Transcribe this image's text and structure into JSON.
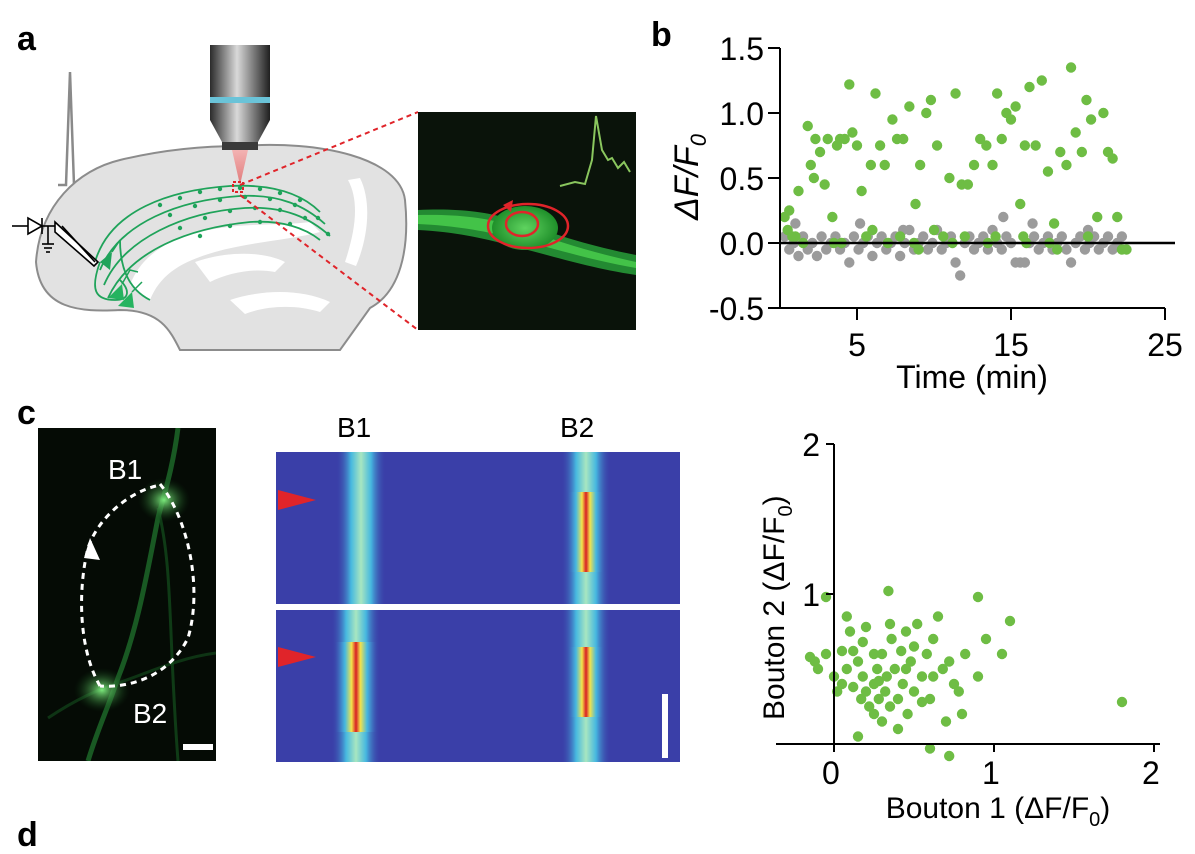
{
  "panels": {
    "a": {
      "letter": "a"
    },
    "b": {
      "letter": "b"
    },
    "c": {
      "letter": "c"
    },
    "d": {
      "letter": "d"
    }
  },
  "panel_c_image_labels": {
    "b1": "B1",
    "b2": "B2"
  },
  "panel_c_kymograph_labels": {
    "b1": "B1",
    "b2": "B2"
  },
  "colors": {
    "green": "#6ebd44",
    "gray": "#9b9b9b",
    "red": "#e0242a",
    "kymo_bg": "#3a3fa8",
    "dendrite": "#1fa35a"
  },
  "chart_data": [
    {
      "type": "scatter",
      "panel": "b",
      "xlabel": "Time (min)",
      "ylabel_main": "ΔF/F",
      "ylabel_sub": "0",
      "xlim": [
        0,
        25
      ],
      "ylim": [
        -0.5,
        1.5
      ],
      "xticks": [
        5,
        15,
        25
      ],
      "yticks": [
        1.5,
        1.0,
        0.5,
        0.0,
        -0.5
      ],
      "ytick_labels": [
        "1.5",
        "1.0",
        "0.5",
        "0.0",
        "-0.5"
      ],
      "xtick_labels": [
        "5",
        "15",
        "25"
      ],
      "baseline": 0,
      "series": [
        {
          "color_key": "green",
          "points": [
            [
              0.3,
              0.2
            ],
            [
              0.5,
              0.1
            ],
            [
              0.8,
              0.05
            ],
            [
              1.2,
              0.4
            ],
            [
              1.5,
              0.0
            ],
            [
              1.8,
              0.9
            ],
            [
              2.0,
              0.6
            ],
            [
              2.3,
              0.8
            ],
            [
              2.6,
              0.7
            ],
            [
              2.9,
              0.45
            ],
            [
              3.1,
              0.8
            ],
            [
              3.4,
              0.2
            ],
            [
              3.7,
              0.75
            ],
            [
              3.9,
              0.8
            ],
            [
              4.2,
              0.8
            ],
            [
              4.5,
              1.22
            ],
            [
              4.7,
              0.85
            ],
            [
              5.0,
              0.75
            ],
            [
              5.3,
              0.4
            ],
            [
              5.6,
              0.05
            ],
            [
              5.9,
              0.6
            ],
            [
              6.2,
              1.15
            ],
            [
              6.5,
              0.75
            ],
            [
              6.8,
              0.6
            ],
            [
              7.0,
              0.0
            ],
            [
              7.3,
              0.95
            ],
            [
              7.6,
              0.8
            ],
            [
              8.0,
              0.8
            ],
            [
              8.4,
              1.05
            ],
            [
              8.8,
              0.3
            ],
            [
              9.1,
              0.6
            ],
            [
              9.5,
              1.0
            ],
            [
              9.8,
              1.1
            ],
            [
              10.2,
              0.75
            ],
            [
              10.6,
              0.05
            ],
            [
              11.0,
              0.5
            ],
            [
              11.4,
              1.15
            ],
            [
              11.8,
              0.45
            ],
            [
              12.2,
              0.45
            ],
            [
              12.6,
              0.6
            ],
            [
              13.0,
              0.8
            ],
            [
              13.4,
              0.75
            ],
            [
              13.8,
              0.6
            ],
            [
              14.1,
              1.15
            ],
            [
              14.4,
              0.8
            ],
            [
              14.7,
              1.0
            ],
            [
              15.0,
              0.95
            ],
            [
              15.3,
              1.05
            ],
            [
              15.6,
              0.3
            ],
            [
              15.9,
              0.75
            ],
            [
              16.2,
              1.2
            ],
            [
              16.6,
              0.75
            ],
            [
              17.0,
              1.25
            ],
            [
              17.4,
              0.55
            ],
            [
              17.8,
              0.15
            ],
            [
              18.2,
              0.7
            ],
            [
              18.6,
              0.6
            ],
            [
              18.9,
              1.35
            ],
            [
              19.2,
              0.85
            ],
            [
              19.6,
              0.7
            ],
            [
              19.9,
              1.1
            ],
            [
              20.2,
              0.95
            ],
            [
              20.6,
              0.2
            ],
            [
              21.0,
              1.0
            ],
            [
              21.3,
              0.7
            ],
            [
              21.6,
              0.65
            ],
            [
              21.9,
              0.2
            ],
            [
              22.2,
              -0.05
            ],
            [
              0.6,
              0.25
            ],
            [
              1.0,
              0.05
            ],
            [
              2.2,
              0.5
            ],
            [
              3.5,
              0.0
            ],
            [
              6.0,
              0.1
            ],
            [
              7.8,
              0.05
            ],
            [
              9.0,
              -0.05
            ],
            [
              10.0,
              0.1
            ],
            [
              12.0,
              0.05
            ],
            [
              13.5,
              0.0
            ],
            [
              16.0,
              0.0
            ],
            [
              18.0,
              -0.05
            ],
            [
              20.0,
              0.05
            ],
            [
              22.5,
              -0.05
            ],
            [
              11.2,
              0.0
            ],
            [
              15.8,
              0.05
            ],
            [
              17.5,
              0.0
            ],
            [
              4.0,
              0.0
            ],
            [
              8.7,
              0.0
            ],
            [
              14.0,
              0.05
            ]
          ]
        },
        {
          "color_key": "gray",
          "points": [
            [
              0.3,
              0.05
            ],
            [
              0.6,
              -0.05
            ],
            [
              0.9,
              0.0
            ],
            [
              1.2,
              -0.1
            ],
            [
              1.5,
              0.05
            ],
            [
              1.8,
              -0.05
            ],
            [
              2.1,
              0.0
            ],
            [
              2.4,
              -0.1
            ],
            [
              2.7,
              0.05
            ],
            [
              3.0,
              -0.05
            ],
            [
              3.3,
              0.0
            ],
            [
              3.6,
              0.05
            ],
            [
              3.9,
              -0.05
            ],
            [
              4.2,
              0.0
            ],
            [
              4.5,
              -0.15
            ],
            [
              4.8,
              0.05
            ],
            [
              5.1,
              -0.05
            ],
            [
              5.4,
              0.0
            ],
            [
              5.7,
              0.05
            ],
            [
              6.0,
              -0.1
            ],
            [
              6.3,
              0.0
            ],
            [
              6.6,
              0.05
            ],
            [
              6.9,
              -0.05
            ],
            [
              7.2,
              0.0
            ],
            [
              7.5,
              0.05
            ],
            [
              7.8,
              -0.1
            ],
            [
              8.1,
              0.0
            ],
            [
              8.4,
              0.1
            ],
            [
              8.7,
              -0.05
            ],
            [
              9.0,
              0.0
            ],
            [
              9.3,
              0.05
            ],
            [
              9.6,
              -0.05
            ],
            [
              9.9,
              0.0
            ],
            [
              10.2,
              0.1
            ],
            [
              10.5,
              -0.05
            ],
            [
              10.8,
              0.0
            ],
            [
              11.1,
              0.05
            ],
            [
              11.4,
              -0.15
            ],
            [
              11.7,
              -0.25
            ],
            [
              12.0,
              0.0
            ],
            [
              12.3,
              0.05
            ],
            [
              12.6,
              -0.05
            ],
            [
              12.9,
              0.0
            ],
            [
              13.2,
              0.05
            ],
            [
              13.5,
              -0.05
            ],
            [
              13.8,
              0.1
            ],
            [
              14.1,
              0.0
            ],
            [
              14.4,
              -0.05
            ],
            [
              14.7,
              0.05
            ],
            [
              15.0,
              0.0
            ],
            [
              15.3,
              -0.15
            ],
            [
              15.6,
              -0.15
            ],
            [
              15.9,
              -0.15
            ],
            [
              16.2,
              0.0
            ],
            [
              16.5,
              0.05
            ],
            [
              16.8,
              -0.05
            ],
            [
              17.1,
              0.0
            ],
            [
              17.4,
              0.05
            ],
            [
              17.7,
              -0.05
            ],
            [
              18.0,
              0.0
            ],
            [
              18.3,
              0.05
            ],
            [
              18.6,
              -0.05
            ],
            [
              18.9,
              -0.15
            ],
            [
              19.2,
              0.0
            ],
            [
              19.5,
              0.05
            ],
            [
              19.8,
              -0.05
            ],
            [
              20.1,
              0.0
            ],
            [
              20.4,
              0.05
            ],
            [
              20.7,
              -0.05
            ],
            [
              21.0,
              0.0
            ],
            [
              21.3,
              0.05
            ],
            [
              21.6,
              -0.05
            ],
            [
              21.9,
              0.0
            ],
            [
              22.2,
              0.05
            ],
            [
              14.5,
              0.2
            ],
            [
              1.0,
              0.15
            ],
            [
              5.2,
              0.15
            ],
            [
              16.4,
              0.15
            ],
            [
              20.0,
              0.1
            ],
            [
              8.0,
              0.1
            ]
          ]
        }
      ]
    },
    {
      "type": "scatter",
      "panel": "c",
      "xlabel_main": "Bouton 1 (ΔF/F",
      "xlabel_sub": "0",
      "xlabel_close": ")",
      "ylabel_main": "Bouton 2 (ΔF/F",
      "ylabel_sub": "0",
      "ylabel_close": ")",
      "xlim": [
        -0.2,
        2.0
      ],
      "ylim": [
        -0.05,
        2.0
      ],
      "xticks": [
        0,
        1,
        2
      ],
      "yticks": [
        1,
        2
      ],
      "xtick_labels": [
        "0",
        "1",
        "2"
      ],
      "ytick_labels": [
        "1",
        "2"
      ],
      "series": [
        {
          "color_key": "green",
          "points": [
            [
              -0.05,
              0.98
            ],
            [
              -0.15,
              0.58
            ],
            [
              -0.12,
              0.55
            ],
            [
              -0.05,
              0.6
            ],
            [
              -0.1,
              0.5
            ],
            [
              0.0,
              0.45
            ],
            [
              0.02,
              0.35
            ],
            [
              0.05,
              0.4
            ],
            [
              0.08,
              0.5
            ],
            [
              0.1,
              0.75
            ],
            [
              0.12,
              0.62
            ],
            [
              0.15,
              0.55
            ],
            [
              0.17,
              0.3
            ],
            [
              0.18,
              0.45
            ],
            [
              0.2,
              0.35
            ],
            [
              0.22,
              0.25
            ],
            [
              0.25,
              0.4
            ],
            [
              0.25,
              0.2
            ],
            [
              0.27,
              0.5
            ],
            [
              0.28,
              0.3
            ],
            [
              0.3,
              0.6
            ],
            [
              0.3,
              0.15
            ],
            [
              0.32,
              0.35
            ],
            [
              0.33,
              0.45
            ],
            [
              0.34,
              1.02
            ],
            [
              0.35,
              0.25
            ],
            [
              0.36,
              0.7
            ],
            [
              0.38,
              0.5
            ],
            [
              0.4,
              0.3
            ],
            [
              0.42,
              0.62
            ],
            [
              0.43,
              0.4
            ],
            [
              0.45,
              0.75
            ],
            [
              0.46,
              0.2
            ],
            [
              0.48,
              0.55
            ],
            [
              0.5,
              0.35
            ],
            [
              0.5,
              0.65
            ],
            [
              0.52,
              0.8
            ],
            [
              0.55,
              0.45
            ],
            [
              0.58,
              0.6
            ],
            [
              0.6,
              0.3
            ],
            [
              0.62,
              0.7
            ],
            [
              0.65,
              0.85
            ],
            [
              0.68,
              0.5
            ],
            [
              0.7,
              0.15
            ],
            [
              0.72,
              0.55
            ],
            [
              0.75,
              0.4
            ],
            [
              0.78,
              0.35
            ],
            [
              0.8,
              0.2
            ],
            [
              0.82,
              0.6
            ],
            [
              0.9,
              0.98
            ],
            [
              0.95,
              0.7
            ],
            [
              1.05,
              0.6
            ],
            [
              1.1,
              0.82
            ],
            [
              0.15,
              0.05
            ],
            [
              0.6,
              -0.03
            ],
            [
              0.72,
              -0.08
            ],
            [
              0.08,
              0.85
            ],
            [
              0.2,
              0.78
            ],
            [
              0.35,
              0.8
            ],
            [
              0.05,
              0.62
            ],
            [
              0.12,
              0.38
            ],
            [
              0.25,
              0.6
            ],
            [
              0.4,
              0.1
            ],
            [
              0.55,
              0.28
            ],
            [
              1.8,
              0.28
            ],
            [
              0.9,
              0.45
            ],
            [
              0.18,
              0.68
            ],
            [
              0.28,
              0.42
            ],
            [
              0.45,
              0.5
            ],
            [
              0.62,
              0.45
            ]
          ]
        }
      ]
    }
  ]
}
